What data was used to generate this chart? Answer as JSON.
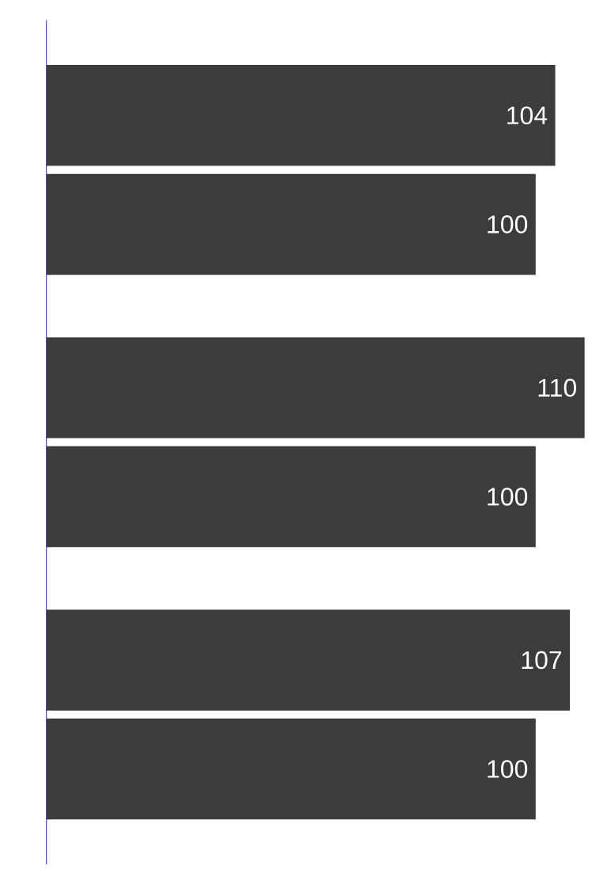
{
  "chart_data": {
    "type": "bar",
    "orientation": "horizontal",
    "categories": [
      null,
      null,
      null
    ],
    "series": [
      {
        "color": "#3c3c3c",
        "values": [
          104,
          110,
          107
        ]
      },
      {
        "color": "#3c3c3c",
        "values": [
          100,
          100,
          100
        ]
      }
    ],
    "data_labels": true,
    "tick_labels": false
  }
}
